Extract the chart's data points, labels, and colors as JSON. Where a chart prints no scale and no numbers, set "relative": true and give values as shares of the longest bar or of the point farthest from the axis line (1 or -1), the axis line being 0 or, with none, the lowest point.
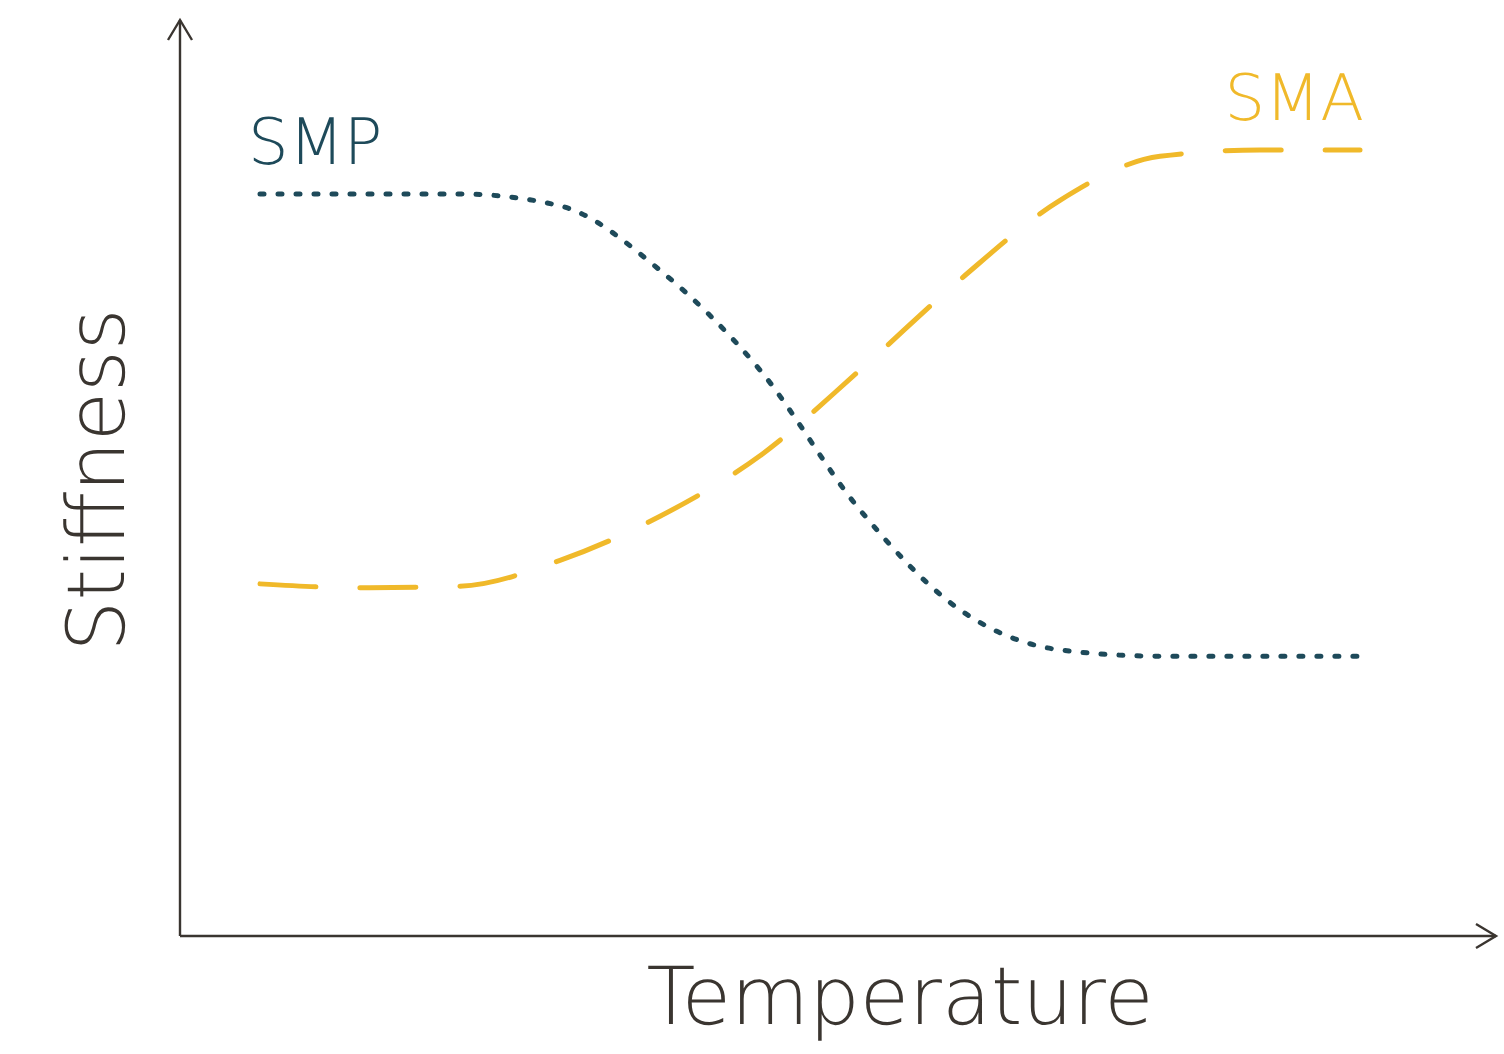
{
  "chart_data": {
    "type": "line",
    "relative": true,
    "xlabel": "Temperature",
    "ylabel": "Stiffness",
    "categories": [
      null,
      null,
      null,
      null,
      null,
      null,
      null,
      null,
      null,
      null,
      null,
      null
    ],
    "series": [
      {
        "name": "SMP",
        "color": "#1e4a5a",
        "line_style": "dotted",
        "values": [
          0.944,
          0.944,
          0.944,
          0.929,
          0.847,
          0.72,
          0.542,
          0.415,
          0.364,
          0.356,
          0.356,
          0.356
        ]
      },
      {
        "name": "SMA",
        "color": "#f0b92a",
        "line_style": "dashed",
        "values": [
          0.448,
          0.443,
          0.445,
          0.478,
          0.534,
          0.611,
          0.72,
          0.835,
          0.936,
          0.992,
          1.0,
          1.0
        ]
      }
    ]
  }
}
